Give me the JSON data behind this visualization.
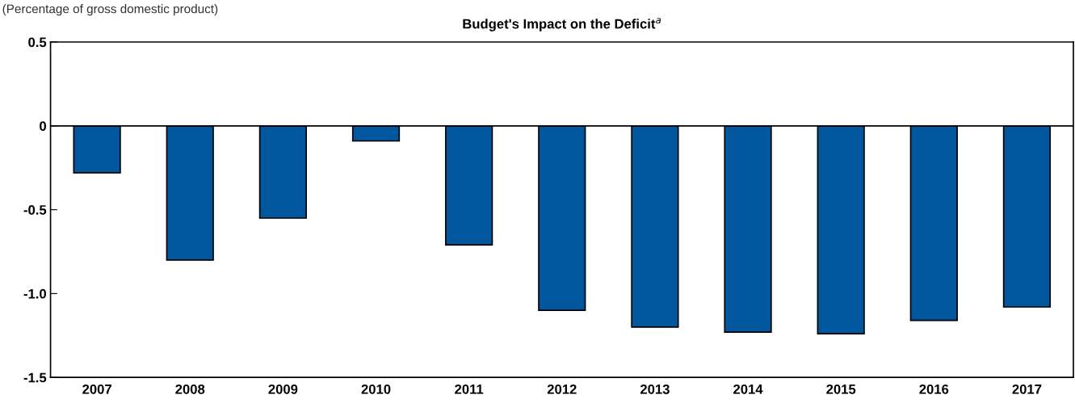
{
  "chart_data": {
    "type": "bar",
    "title": "Budget's Impact on the Deficit$^{a}$",
    "subtitle": "(Percentage of gross domestic product)",
    "categories": [
      "2007",
      "2008",
      "2009",
      "2010",
      "2011",
      "2012",
      "2013",
      "2014",
      "2015",
      "2016",
      "2017"
    ],
    "values": [
      -0.28,
      -0.8,
      -0.55,
      -0.09,
      -0.71,
      -1.1,
      -1.2,
      -1.23,
      -1.24,
      -1.16,
      -1.08
    ],
    "color": "#00579e",
    "ylim": [
      -1.5,
      0.5
    ],
    "yticks": [
      {
        "value": -1.5,
        "label": "-1.5"
      },
      {
        "value": -1.0,
        "label": "-1.0"
      },
      {
        "value": -0.5,
        "label": "-0.5"
      },
      0,
      0.5
    ],
    "ref_lines": [
      {
        "axis": "y",
        "value": 0,
        "color": "#000000"
      }
    ],
    "grid": false
  }
}
